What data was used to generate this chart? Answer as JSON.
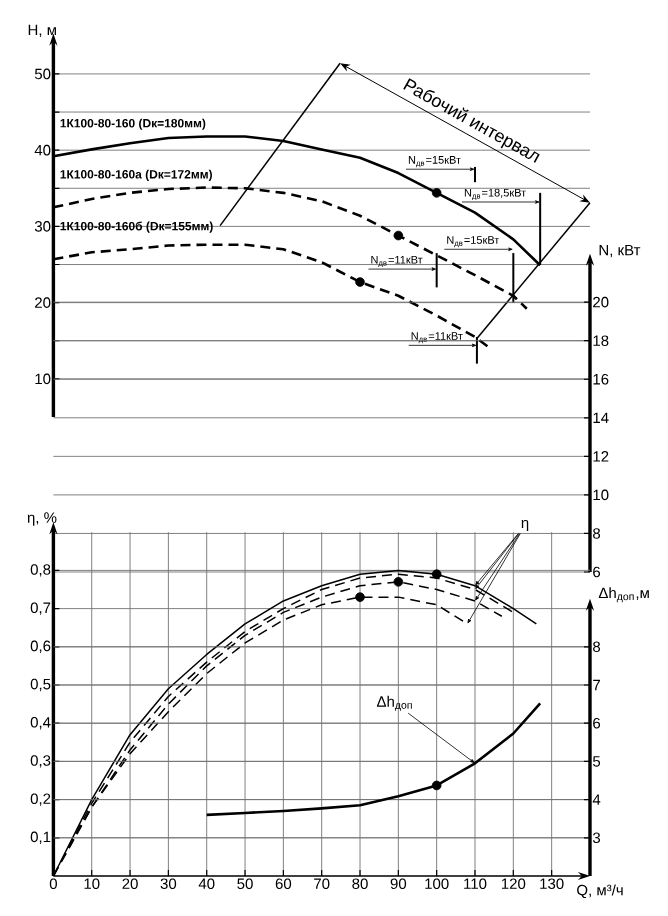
{
  "chart_data": [
    {
      "type": "line",
      "ylabel": "H, м",
      "y2label": "N, кВт",
      "xlim": [
        0,
        140
      ],
      "xticks": [
        0,
        10,
        20,
        30,
        40,
        50,
        60,
        70,
        80,
        90,
        100,
        110,
        120,
        130
      ],
      "ylim": [
        5,
        54
      ],
      "yticks": [
        10,
        {
          "value": 15,
          "label": null
        },
        20,
        {
          "value": 25,
          "label": null
        },
        30,
        {
          "value": 35,
          "label": null
        },
        40,
        {
          "value": 45,
          "label": null
        },
        50
      ],
      "y2lim": [
        6,
        22
      ],
      "y2ticks": [
        6,
        8,
        10,
        12,
        14,
        16,
        18,
        20
      ],
      "grid": true,
      "tick_labels": "y",
      "series": [
        {
          "name": "1К100-80-160 (Dк=180мм)",
          "color": "#000000",
          "line_style": "solid",
          "x": [
            0,
            10,
            20,
            30,
            40,
            50,
            60,
            70,
            80,
            90,
            100,
            110,
            120,
            127
          ],
          "values": [
            39.2,
            40.1,
            40.9,
            41.6,
            41.8,
            41.8,
            41.2,
            40.1,
            39.0,
            37.0,
            34.4,
            31.8,
            28.3,
            24.9
          ]
        },
        {
          "name": "1К100-80-160а (Dк=172мм)",
          "color": "#000000",
          "line_style": "dashed",
          "x": [
            0,
            10,
            20,
            30,
            40,
            50,
            60,
            70,
            80,
            90,
            100,
            110,
            120,
            123.5
          ],
          "values": [
            32.5,
            33.6,
            34.4,
            34.9,
            35.1,
            35.0,
            34.4,
            33.3,
            31.4,
            28.8,
            26.2,
            23.6,
            20.9,
            19.2
          ]
        },
        {
          "name": "1К100-80-160б (Dк=155мм)",
          "color": "#000000",
          "line_style": "dashed",
          "x": [
            0,
            10,
            20,
            30,
            40,
            50,
            60,
            70,
            80,
            90,
            100,
            110,
            114
          ],
          "values": [
            25.7,
            26.6,
            27.0,
            27.5,
            27.6,
            27.6,
            27.0,
            25.3,
            22.7,
            20.9,
            18.3,
            15.5,
            14.0
          ]
        },
        {
          "color": "#000000",
          "line_style": "solid",
          "x": [
            43.5,
            74.8
          ],
          "values": [
            30.1,
            51.4
          ]
        },
        {
          "color": "#000000",
          "line_style": "solid",
          "x": [
            110.5,
            140
          ],
          "values": [
            15.3,
            33.1
          ]
        },
        {
          "type": "scatter",
          "marker": "circle",
          "color": "#000000",
          "x": [
            100,
            90,
            80
          ],
          "values": [
            34.4,
            28.8,
            22.7
          ]
        }
      ],
      "annotations": [
        "Рабочий интервал",
        "N$_{дв}$=15кВт",
        "N$_{дв}$=18,5кВт",
        "N$_{дв}$=15кВт",
        "N$_{дв}$=11кВт",
        "N$_{дв}$=11кВт"
      ]
    },
    {
      "type": "line",
      "xlabel": "Q, м³/ч",
      "ylabel": "η, %",
      "y2label": "Δh$_{доп}$,м",
      "xlim": [
        0,
        140
      ],
      "xticks": [
        0,
        10,
        20,
        30,
        40,
        50,
        60,
        70,
        80,
        90,
        100,
        110,
        120,
        130
      ],
      "ylim": [
        0,
        0.9
      ],
      "yticks": [
        {
          "value": 0.1,
          "label": "0,1"
        },
        {
          "value": 0.2,
          "label": "0,2"
        },
        {
          "value": 0.3,
          "label": "0,3"
        },
        {
          "value": 0.4,
          "label": "0,4"
        },
        {
          "value": 0.5,
          "label": "0,5"
        },
        {
          "value": 0.6,
          "label": "0,6"
        },
        {
          "value": 0.7,
          "label": "0,7"
        },
        {
          "value": 0.8,
          "label": "0,8"
        }
      ],
      "y2lim": [
        2,
        9
      ],
      "y2ticks": [
        3,
        4,
        5,
        6,
        7,
        8
      ],
      "grid": true,
      "series": [
        {
          "color": "#000000",
          "line_style": "solid",
          "x": [
            0,
            10,
            20,
            30,
            40,
            50,
            60,
            70,
            80,
            90,
            100,
            110,
            120,
            126
          ],
          "values": [
            0,
            0.2,
            0.37,
            0.49,
            0.58,
            0.66,
            0.72,
            0.76,
            0.79,
            0.8,
            0.79,
            0.76,
            0.7,
            0.66
          ]
        },
        {
          "color": "#000000",
          "line_style": "dashed",
          "x": [
            0,
            10,
            20,
            30,
            40,
            50,
            60,
            70,
            80,
            90,
            100,
            110,
            120
          ],
          "values": [
            0,
            0.19,
            0.35,
            0.47,
            0.56,
            0.64,
            0.7,
            0.75,
            0.78,
            0.79,
            0.78,
            0.75,
            0.69
          ]
        },
        {
          "color": "#000000",
          "line_style": "dashed",
          "x": [
            0,
            10,
            20,
            30,
            40,
            50,
            60,
            70,
            80,
            90,
            100,
            110,
            117
          ],
          "values": [
            0,
            0.18,
            0.33,
            0.45,
            0.55,
            0.63,
            0.69,
            0.73,
            0.76,
            0.77,
            0.75,
            0.72,
            0.68
          ]
        },
        {
          "color": "#000000",
          "line_style": "dashed",
          "x": [
            0,
            10,
            20,
            30,
            40,
            50,
            60,
            70,
            80,
            90,
            100,
            108
          ],
          "values": [
            0,
            0.18,
            0.32,
            0.43,
            0.53,
            0.61,
            0.67,
            0.71,
            0.73,
            0.73,
            0.71,
            0.66
          ]
        },
        {
          "type": "scatter",
          "marker": "circle",
          "color": "#000000",
          "x": [
            100,
            90,
            80
          ],
          "values": [
            0.79,
            0.77,
            0.73
          ]
        },
        {
          "name": "Δh$_{доп}$",
          "axis": "y2",
          "color": "#000000",
          "line_style": "solid",
          "x": [
            40,
            50,
            60,
            70,
            80,
            90,
            100,
            110,
            120,
            127
          ],
          "values": [
            3.6,
            3.65,
            3.7,
            3.77,
            3.85,
            4.09,
            4.37,
            4.95,
            5.73,
            6.52
          ]
        },
        {
          "axis": "y2",
          "type": "scatter",
          "marker": "circle",
          "color": "#000000",
          "x": [
            100
          ],
          "values": [
            4.37
          ]
        }
      ],
      "annotations": [
        {
          "text": "η",
          "x": 110,
          "y": 0.75
        }
      ]
    }
  ]
}
